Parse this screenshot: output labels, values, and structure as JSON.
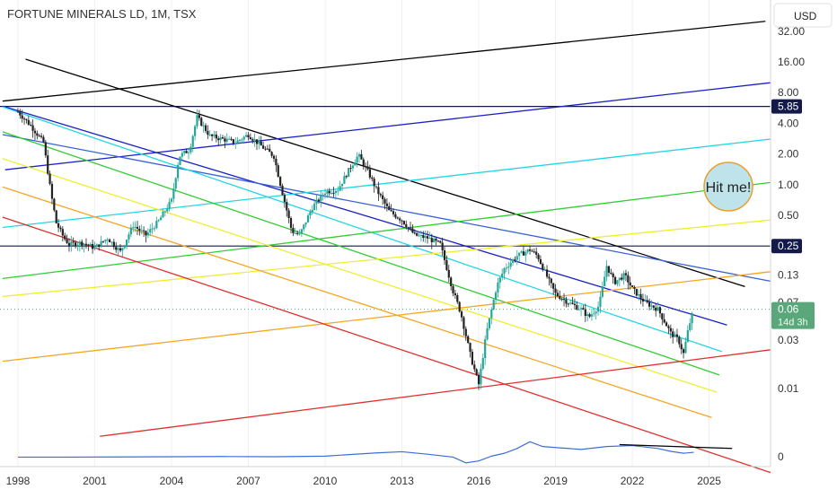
{
  "header": {
    "symbol_title": "FORTUNE MINERALS LD, 1M, TSX",
    "currency_button": "USD"
  },
  "annotation": {
    "bubble_text": "Hit me!"
  },
  "chart_data": {
    "type": "line",
    "title": "FORTUNE MINERALS LD, 1M, TSX",
    "y_scale": "log",
    "ylim": [
      0.0065,
      40
    ],
    "xlim": [
      1997.3,
      2027.4
    ],
    "x_ticks": [
      "1998",
      "2001",
      "2004",
      "2007",
      "2010",
      "2013",
      "2016",
      "2019",
      "2022",
      "2025"
    ],
    "y_ticks": [
      {
        "label": "32.00",
        "value": 32
      },
      {
        "label": "16.00",
        "value": 16
      },
      {
        "label": "8.00",
        "value": 8
      },
      {
        "label": "4.00",
        "value": 4
      },
      {
        "label": "2.00",
        "value": 2
      },
      {
        "label": "1.00",
        "value": 1
      },
      {
        "label": "0.50",
        "value": 0.5
      },
      {
        "label": "0.13",
        "value": 0.13
      },
      {
        "label": "0.07",
        "value": 0.07
      },
      {
        "label": "0.03",
        "value": 0.03
      },
      {
        "label": "0.01",
        "value": 0.01
      }
    ],
    "price_badges": [
      {
        "label": "5.85",
        "value": 5.85
      },
      {
        "label": "0.25",
        "value": 0.25
      }
    ],
    "current_price": {
      "label": "0.06",
      "value": 0.06,
      "countdown": "14d 3h"
    },
    "horizontal_levels": [
      5.85,
      0.25
    ],
    "price_series": {
      "name": "",
      "x": [
        1998.0,
        1998.5,
        1999.0,
        1999.3,
        1999.5,
        1999.8,
        2000.0,
        2000.5,
        2001.0,
        2001.5,
        2002.0,
        2002.5,
        2003.0,
        2003.5,
        2004.0,
        2004.3,
        2004.7,
        2005.0,
        2005.5,
        2006.0,
        2006.5,
        2007.0,
        2007.5,
        2008.0,
        2008.3,
        2008.7,
        2009.0,
        2009.5,
        2010.0,
        2010.5,
        2011.0,
        2011.3,
        2011.7,
        2012.0,
        2012.5,
        2013.0,
        2013.5,
        2014.0,
        2014.5,
        2015.0,
        2015.3,
        2015.7,
        2016.0,
        2016.3,
        2016.7,
        2017.0,
        2017.5,
        2018.0,
        2018.3,
        2018.7,
        2019.0,
        2019.5,
        2020.0,
        2020.3,
        2020.7,
        2021.0,
        2021.3,
        2021.7,
        2022.0,
        2022.5,
        2023.0,
        2023.5,
        2023.8,
        2024.0,
        2024.2,
        2024.4
      ],
      "values": [
        5.2,
        3.8,
        2.6,
        0.8,
        0.42,
        0.3,
        0.26,
        0.27,
        0.24,
        0.3,
        0.22,
        0.4,
        0.32,
        0.44,
        0.7,
        1.9,
        2.2,
        4.6,
        3.0,
        2.8,
        2.6,
        3.1,
        2.4,
        1.9,
        0.9,
        0.35,
        0.32,
        0.6,
        0.85,
        0.9,
        1.5,
        1.95,
        1.3,
        0.9,
        0.55,
        0.45,
        0.32,
        0.3,
        0.26,
        0.09,
        0.055,
        0.02,
        0.011,
        0.035,
        0.1,
        0.15,
        0.2,
        0.23,
        0.2,
        0.12,
        0.085,
        0.07,
        0.06,
        0.05,
        0.065,
        0.16,
        0.11,
        0.13,
        0.095,
        0.07,
        0.06,
        0.035,
        0.03,
        0.022,
        0.04,
        0.06
      ]
    },
    "indicator_series": {
      "name": "",
      "x": [
        1998,
        2000,
        2002,
        2004,
        2006,
        2008,
        2010,
        2012,
        2013,
        2014,
        2015,
        2015.5,
        2016,
        2016.5,
        2017,
        2017.5,
        2018,
        2018.5,
        2019,
        2020,
        2021,
        2022,
        2023,
        2023.5,
        2024,
        2024.4
      ],
      "values": [
        0,
        0,
        0.01,
        0.02,
        0.03,
        0.02,
        0.05,
        0.22,
        0.28,
        0.15,
        0,
        -0.3,
        -0.2,
        0.05,
        0.2,
        0.45,
        0.8,
        0.55,
        0.5,
        0.4,
        0.55,
        0.6,
        0.45,
        0.3,
        0.2,
        0.25
      ],
      "y_tick": "0"
    },
    "trendlines": [
      {
        "color": "#000000",
        "x": [
          1997.4,
          2027.2
        ],
        "y": [
          6.6,
          40
        ]
      },
      {
        "color": "#000000",
        "x": [
          1998.3,
          2026.4
        ],
        "y": [
          17,
          0.1
        ]
      },
      {
        "color": "#1a22c4",
        "x": [
          1997.5,
          2027.4
        ],
        "y": [
          1.4,
          10
        ]
      },
      {
        "color": "#1a22c4",
        "x": [
          1997.4,
          2025.7
        ],
        "y": [
          5.9,
          0.042
        ]
      },
      {
        "color": "#3a62d6",
        "x": [
          1997.4,
          2027.4
        ],
        "y": [
          3.1,
          0.113
        ]
      },
      {
        "color": "#22d6e6",
        "x": [
          1997.4,
          2027.4
        ],
        "y": [
          0.38,
          2.8
        ]
      },
      {
        "color": "#22d6e6",
        "x": [
          1997.4,
          2025.5
        ],
        "y": [
          5.8,
          0.023
        ]
      },
      {
        "color": "#33cc33",
        "x": [
          1997.4,
          2027.4
        ],
        "y": [
          0.12,
          1.05
        ]
      },
      {
        "color": "#33cc33",
        "x": [
          1997.4,
          2025.4
        ],
        "y": [
          3.3,
          0.0136
        ]
      },
      {
        "color": "#eeee33",
        "x": [
          1997.4,
          2027.4
        ],
        "y": [
          0.08,
          0.45
        ]
      },
      {
        "color": "#eeee33",
        "x": [
          1997.4,
          2025.3
        ],
        "y": [
          1.8,
          0.0092
        ]
      },
      {
        "color": "#f5a623",
        "x": [
          1997.4,
          2027.4
        ],
        "y": [
          0.0185,
          0.14
        ]
      },
      {
        "color": "#f5a623",
        "x": [
          1997.4,
          2025.1
        ],
        "y": [
          0.95,
          0.0052
        ]
      },
      {
        "color": "#e03030",
        "x": [
          1997.4,
          2027.4
        ],
        "y": [
          0.48,
          0.0015
        ]
      },
      {
        "color": "#e03030",
        "x": [
          2001.2,
          2027.4
        ],
        "y": [
          0.0034,
          0.024
        ]
      }
    ],
    "indicator_trendline": {
      "color": "#000000",
      "x": [
        2021.5,
        2025.9
      ],
      "y": [
        0.65,
        0.45
      ]
    },
    "colors": {
      "candle_up": "#26a69a",
      "candle_down": "#222222",
      "indicator": "#3b6fd8",
      "current_price_badge": "#5aa77c",
      "level_badge": "#131a4a"
    }
  }
}
